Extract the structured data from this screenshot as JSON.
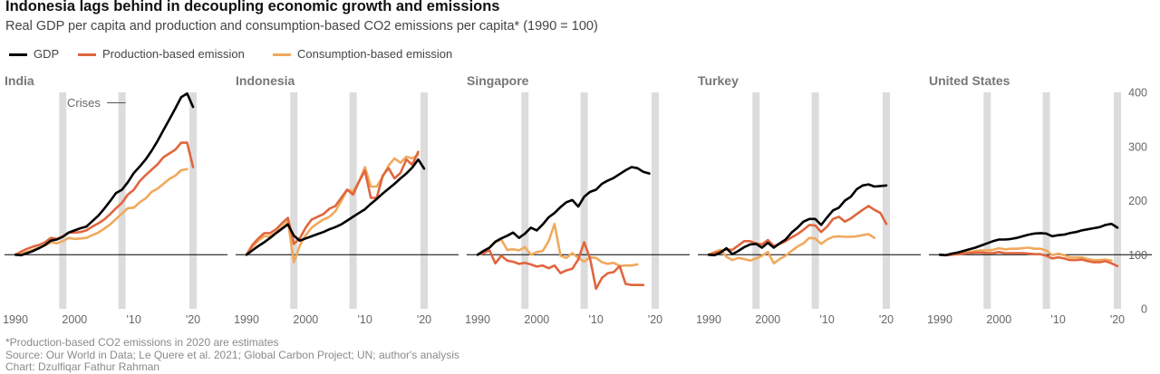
{
  "title": "Indonesia lags behind in decoupling economic growth and emissions",
  "subtitle": "Real GDP per capita and production and consumption-based CO2 emissions per capita* (1990 = 100)",
  "legend": [
    {
      "label": "GDP",
      "color": "#000000"
    },
    {
      "label": "Production-based emission",
      "color": "#e0663e"
    },
    {
      "label": "Consumption-based emission",
      "color": "#f0a95c"
    }
  ],
  "crises_label": "Crises",
  "notes": {
    "footnote": "*Production-based CO2 emissions in 2020 are estimates",
    "source": "Source: Our World in Data; Le Quere et al. 2021; Global Carbon Project; UN; author's analysis",
    "credit": "Chart: Dzulfiqar Fathur Rahman"
  },
  "chart_data": {
    "type": "line",
    "x_range": [
      1990,
      2020
    ],
    "ylim": [
      0,
      400
    ],
    "y_ticks": [
      "0",
      "100",
      "200",
      "300",
      "400"
    ],
    "y_tick_values": [
      0,
      100,
      200,
      300,
      400
    ],
    "x_ticks": [
      "1990",
      "2000",
      "'10",
      "'20"
    ],
    "x_tick_values": [
      1990,
      2000,
      2010,
      2020
    ],
    "baseline": 100,
    "crisis_years": [
      1998,
      2008,
      2020
    ],
    "start_year": 1990,
    "colors": {
      "gdp": "#000000",
      "production": "#e0663e",
      "consumption": "#f0a95c",
      "crisis": "#dcdcdc"
    },
    "panels": [
      {
        "name": "India",
        "series": {
          "gdp": [
            100,
            99,
            103,
            107,
            112,
            118,
            126,
            128,
            133,
            141,
            145,
            149,
            152,
            162,
            172,
            185,
            199,
            214,
            220,
            234,
            251,
            263,
            276,
            292,
            310,
            330,
            350,
            370,
            391,
            398,
            373
          ],
          "production": [
            100,
            106,
            111,
            115,
            118,
            123,
            131,
            129,
            134,
            141,
            141,
            142,
            145,
            152,
            158,
            165,
            175,
            186,
            196,
            211,
            220,
            236,
            247,
            257,
            267,
            280,
            287,
            294,
            307,
            307,
            262
          ],
          "consumption": [
            100,
            102,
            105,
            109,
            113,
            117,
            123,
            121,
            125,
            131,
            129,
            130,
            131,
            136,
            141,
            148,
            156,
            166,
            176,
            186,
            187,
            197,
            204,
            216,
            222,
            231,
            240,
            246,
            256,
            258,
            null
          ]
        }
      },
      {
        "name": "Indonesia",
        "series": {
          "gdp": [
            100,
            108,
            116,
            123,
            131,
            140,
            148,
            156,
            135,
            126,
            130,
            134,
            138,
            142,
            147,
            151,
            156,
            163,
            170,
            177,
            184,
            194,
            203,
            213,
            222,
            231,
            241,
            250,
            261,
            276,
            259
          ],
          "production": [
            100,
            118,
            130,
            140,
            140,
            147,
            158,
            168,
            120,
            130,
            150,
            165,
            170,
            175,
            185,
            190,
            205,
            220,
            211,
            235,
            255,
            205,
            205,
            246,
            260,
            241,
            251,
            276,
            266,
            290,
            null
          ],
          "consumption": [
            100,
            114,
            126,
            134,
            134,
            141,
            150,
            162,
            86,
            117,
            136,
            150,
            158,
            165,
            170,
            180,
            199,
            220,
            217,
            235,
            262,
            226,
            226,
            244,
            265,
            278,
            270,
            281,
            278,
            285,
            null
          ]
        }
      },
      {
        "name": "Singapore",
        "series": {
          "gdp": [
            100,
            107,
            113,
            124,
            130,
            135,
            141,
            131,
            139,
            150,
            145,
            156,
            169,
            177,
            188,
            197,
            201,
            189,
            207,
            216,
            220,
            231,
            237,
            242,
            249,
            256,
            262,
            260,
            253,
            250,
            null
          ],
          "production": [
            100,
            103,
            108,
            84,
            98,
            89,
            87,
            83,
            85,
            82,
            78,
            80,
            75,
            80,
            66,
            71,
            74,
            91,
            123,
            93,
            37,
            57,
            66,
            68,
            79,
            46,
            44,
            44,
            44,
            null,
            null
          ],
          "consumption": [
            100,
            103,
            113,
            123,
            128,
            109,
            110,
            108,
            114,
            100,
            105,
            107,
            125,
            157,
            98,
            94,
            103,
            94,
            87,
            95,
            94,
            86,
            83,
            85,
            79,
            80,
            80,
            82,
            null,
            null,
            null
          ]
        }
      },
      {
        "name": "Turkey",
        "series": {
          "gdp": [
            100,
            99,
            104,
            112,
            101,
            107,
            114,
            119,
            120,
            113,
            122,
            113,
            121,
            128,
            141,
            150,
            161,
            166,
            166,
            155,
            169,
            182,
            187,
            200,
            207,
            221,
            228,
            230,
            226,
            227,
            228
          ],
          "production": [
            100,
            103,
            106,
            110,
            109,
            117,
            125,
            125,
            121,
            119,
            127,
            116,
            120,
            125,
            132,
            138,
            146,
            155,
            154,
            142,
            152,
            166,
            170,
            161,
            167,
            175,
            183,
            190,
            183,
            177,
            157
          ],
          "consumption": [
            100,
            105,
            109,
            96,
            90,
            94,
            92,
            89,
            93,
            98,
            105,
            84,
            92,
            98,
            107,
            115,
            121,
            131,
            130,
            120,
            128,
            133,
            134,
            133,
            133,
            134,
            136,
            138,
            131,
            null,
            null
          ]
        }
      },
      {
        "name": "United States",
        "series": {
          "gdp": [
            100,
            99,
            102,
            104,
            107,
            110,
            113,
            117,
            121,
            125,
            128,
            128,
            129,
            131,
            134,
            137,
            139,
            140,
            139,
            134,
            136,
            137,
            140,
            142,
            145,
            147,
            149,
            151,
            155,
            157,
            150
          ],
          "production": [
            100,
            99,
            100,
            101,
            102,
            103,
            104,
            104,
            103,
            103,
            105,
            103,
            103,
            103,
            103,
            102,
            101,
            101,
            98,
            93,
            95,
            93,
            90,
            90,
            91,
            88,
            86,
            86,
            88,
            84,
            79
          ],
          "consumption": [
            100,
            99,
            100,
            102,
            103,
            105,
            107,
            108,
            108,
            109,
            112,
            110,
            111,
            111,
            112,
            113,
            111,
            111,
            108,
            99,
            102,
            99,
            95,
            95,
            95,
            92,
            90,
            90,
            91,
            89,
            null
          ]
        }
      }
    ]
  }
}
